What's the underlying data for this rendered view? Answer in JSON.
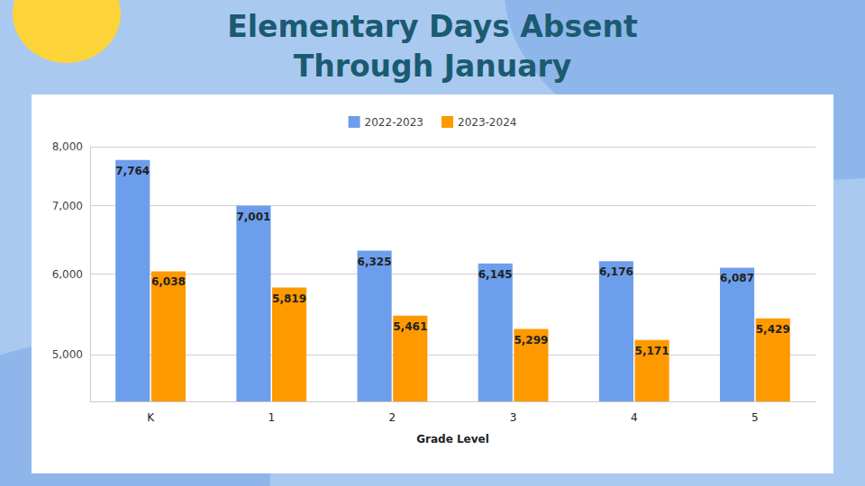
{
  "chart_data": {
    "type": "bar",
    "title": "Elementary Days Absent Through January",
    "x_label": "Grade Level",
    "categories": [
      "K",
      "1",
      "2",
      "3",
      "4",
      "5"
    ],
    "series": [
      {
        "name": "2022-2023",
        "color": "#6d9eeb",
        "values": [
          7764,
          7001,
          6325,
          6145,
          6176,
          6087
        ],
        "value_labels": [
          "7,764",
          "7,001",
          "6,325",
          "6,145",
          "6,176",
          "6,087"
        ]
      },
      {
        "name": "2023-2024",
        "color": "#ff9900",
        "values": [
          6038,
          5819,
          5461,
          5299,
          5171,
          5429
        ],
        "value_labels": [
          "6,038",
          "5,819",
          "5,461",
          "5,299",
          "5,171",
          "5,429"
        ]
      }
    ],
    "ylim": [
      4500,
      8000
    ],
    "yticks": [
      {
        "value": 5000,
        "label": "5,000"
      },
      {
        "value": 6000,
        "label": "6,000"
      },
      {
        "value": 7000,
        "label": "7,000"
      },
      {
        "value": 8000,
        "label": "8,000"
      }
    ],
    "log": "y",
    "grid": true,
    "legend": "top",
    "data_labels": true
  }
}
